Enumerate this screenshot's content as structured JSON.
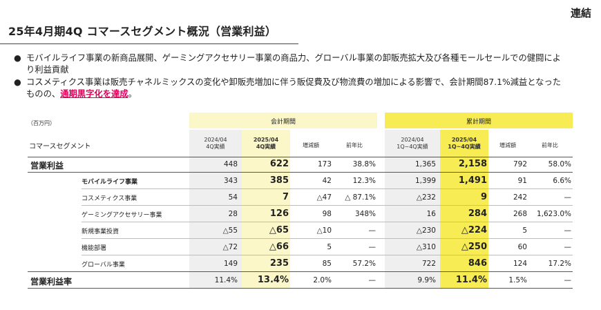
{
  "corner_tag": "連結",
  "title": "25年4月期4Q コマースセグメント概況（営業利益）",
  "bullets": [
    {
      "text": "モバイルライフ事業の新商品展開、ゲーミングアクセサリー事業の商品力、グローバル事業の卸販売拡大及び各種モールセールでの健闘により利益貢献"
    },
    {
      "text_before": "コスメティクス事業は販売チャネルミックスの変化や卸販売増加に伴う販促費及び物流費の増加による影響で、会計期間87.1%減益となったものの、",
      "highlight": "通期黒字化を達成",
      "text_after": "。"
    }
  ],
  "table": {
    "unit": "（百万円）",
    "segment_col": "コマースセグメント",
    "group_quarter": "会計期間",
    "group_cumulative": "累計期間",
    "q_prev": [
      "2024/04",
      "4Q実績"
    ],
    "q_curr": [
      "2025/04",
      "4Q実績"
    ],
    "q_diff": "増減額",
    "q_yoy": "前年比",
    "c_prev": [
      "2024/04",
      "1Q~4Q実績"
    ],
    "c_curr": [
      "2025/04",
      "1Q~4Q実績"
    ],
    "c_diff": "増減額",
    "c_yoy": "前年比",
    "rows": [
      {
        "label": "営業利益",
        "v": [
          "448",
          "622",
          "173",
          "38.8%",
          "1,365",
          "2,158",
          "792",
          "58.0%"
        ]
      },
      {
        "label": "モバイルライフ事業",
        "v": [
          "343",
          "385",
          "42",
          "12.3%",
          "1,399",
          "1,491",
          "91",
          "6.6%"
        ]
      },
      {
        "label": "コスメティクス事業",
        "v": [
          "54",
          "7",
          "△47",
          "△ 87.1%",
          "△232",
          "9",
          "242",
          "—"
        ]
      },
      {
        "label": "ゲーミングアクセサリー事業",
        "v": [
          "28",
          "126",
          "98",
          "348%",
          "16",
          "284",
          "268",
          "1,623.0%"
        ]
      },
      {
        "label": "新規事業投資",
        "v": [
          "△55",
          "△65",
          "△10",
          "—",
          "△230",
          "△224",
          "5",
          "—"
        ]
      },
      {
        "label": "機能部署",
        "v": [
          "△72",
          "△66",
          "5",
          "—",
          "△310",
          "△250",
          "60",
          "—"
        ]
      },
      {
        "label": "グローバル事業",
        "v": [
          "149",
          "235",
          "85",
          "57.2%",
          "722",
          "846",
          "124",
          "17.2%"
        ]
      },
      {
        "label": "営業利益率",
        "v": [
          "11.4%",
          "13.4%",
          "2.0%",
          "—",
          "9.9%",
          "11.4%",
          "1.5%",
          "—"
        ]
      }
    ]
  }
}
